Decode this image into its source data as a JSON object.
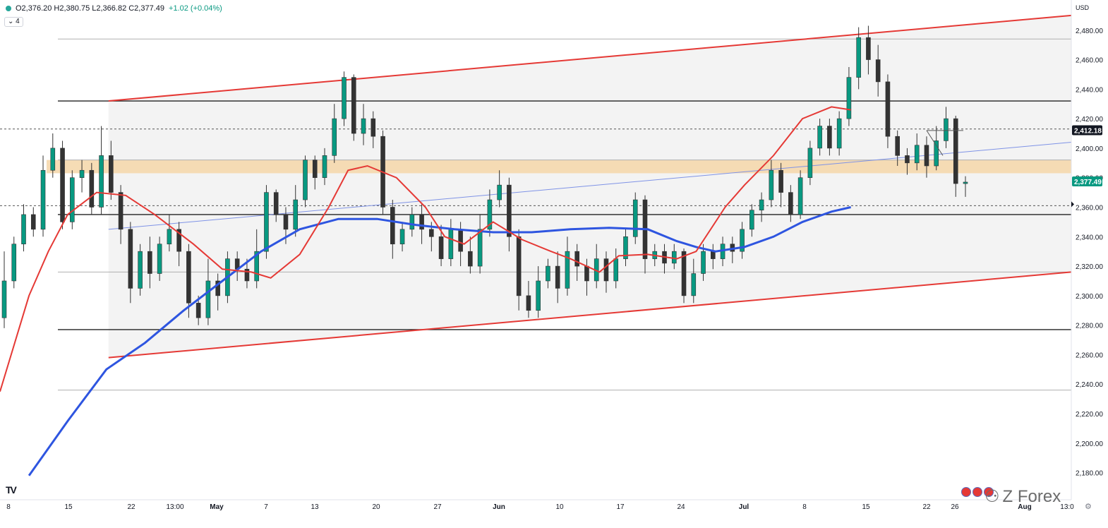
{
  "header": {
    "ohlc_text": "O2,376.20 H2,380.75 L2,366.82 C2,377.49",
    "change_text": "+1.02 (+0.04%)",
    "interval": "4",
    "currency": "USD"
  },
  "watermark": {
    "text": "Z Forex",
    "logo": "TV"
  },
  "icons": {
    "settings": "gear-icon",
    "flags": "us-flag-icon"
  },
  "colors": {
    "up": "#089981",
    "down": "#f23645",
    "candle": "#333333",
    "channel": "#e53935",
    "ma_red": "#e53935",
    "ma_blue": "#2e55e0",
    "zone": "#f5d6a8",
    "trend": "#7f93e6"
  },
  "chart_data": {
    "type": "candlestick",
    "ylim": [
      2170,
      2490
    ],
    "y_ticks": [
      "2,180.00",
      "2,200.00",
      "2,220.00",
      "2,240.00",
      "2,260.00",
      "2,280.00",
      "2,300.00",
      "2,320.00",
      "2,340.00",
      "2,360.00",
      "2,380.00",
      "2,400.00",
      "2,420.00",
      "2,440.00",
      "2,460.00",
      "2,480.00"
    ],
    "x_ticks": [
      "8",
      "15",
      "22",
      "13:00",
      "May",
      "7",
      "13",
      "20",
      "27",
      "Jun",
      "10",
      "17",
      "24",
      "Jul",
      "8",
      "15",
      "22",
      "26",
      "Aug",
      "13:0"
    ],
    "price_labels": [
      {
        "text": "2,412.18",
        "value": 2412.18,
        "style": "dark"
      },
      {
        "text": "2,377.49",
        "value": 2377.49,
        "style": "green"
      }
    ],
    "horizontal_levels": [
      2432,
      2355,
      2277
    ],
    "gray_levels": [
      2474,
      2392,
      2316,
      2236
    ],
    "dashed_levels": [
      2413,
      2361
    ],
    "zone": {
      "low": 2383,
      "high": 2392
    },
    "channel_upper": [
      [
        0.05,
        2432
      ],
      [
        1.0,
        2490
      ]
    ],
    "channel_lower": [
      [
        0.05,
        2258
      ],
      [
        1.0,
        2316
      ]
    ],
    "trendline": [
      [
        0.05,
        2345
      ],
      [
        1.0,
        2404
      ]
    ],
    "ma_red": [
      [
        0,
        2235
      ],
      [
        0.03,
        2300
      ],
      [
        0.05,
        2330
      ],
      [
        0.07,
        2355
      ],
      [
        0.1,
        2370
      ],
      [
        0.13,
        2368
      ],
      [
        0.16,
        2355
      ],
      [
        0.2,
        2335
      ],
      [
        0.23,
        2318
      ],
      [
        0.26,
        2316
      ],
      [
        0.28,
        2312
      ],
      [
        0.31,
        2328
      ],
      [
        0.34,
        2360
      ],
      [
        0.36,
        2385
      ],
      [
        0.38,
        2388
      ],
      [
        0.41,
        2380
      ],
      [
        0.44,
        2360
      ],
      [
        0.46,
        2340
      ],
      [
        0.48,
        2335
      ],
      [
        0.51,
        2350
      ],
      [
        0.54,
        2338
      ],
      [
        0.57,
        2330
      ],
      [
        0.59,
        2325
      ],
      [
        0.62,
        2316
      ],
      [
        0.64,
        2327
      ],
      [
        0.67,
        2328
      ],
      [
        0.7,
        2325
      ],
      [
        0.72,
        2330
      ],
      [
        0.75,
        2360
      ],
      [
        0.77,
        2375
      ],
      [
        0.8,
        2395
      ],
      [
        0.83,
        2420
      ],
      [
        0.86,
        2428
      ],
      [
        0.88,
        2426
      ]
    ],
    "ma_blue": [
      [
        0.03,
        2178
      ],
      [
        0.07,
        2215
      ],
      [
        0.11,
        2250
      ],
      [
        0.15,
        2268
      ],
      [
        0.19,
        2290
      ],
      [
        0.23,
        2310
      ],
      [
        0.27,
        2330
      ],
      [
        0.31,
        2345
      ],
      [
        0.35,
        2352
      ],
      [
        0.39,
        2352
      ],
      [
        0.43,
        2348
      ],
      [
        0.47,
        2345
      ],
      [
        0.51,
        2343
      ],
      [
        0.55,
        2343
      ],
      [
        0.59,
        2345
      ],
      [
        0.63,
        2346
      ],
      [
        0.67,
        2345
      ],
      [
        0.7,
        2337
      ],
      [
        0.72,
        2333
      ],
      [
        0.74,
        2330
      ],
      [
        0.77,
        2333
      ],
      [
        0.8,
        2340
      ],
      [
        0.83,
        2350
      ],
      [
        0.86,
        2357
      ],
      [
        0.88,
        2360
      ]
    ],
    "candles": [
      [
        2285,
        2310,
        2278,
        2330
      ],
      [
        2310,
        2335,
        2305,
        2340
      ],
      [
        2335,
        2355,
        2330,
        2362
      ],
      [
        2355,
        2345,
        2340,
        2360
      ],
      [
        2345,
        2385,
        2340,
        2395
      ],
      [
        2385,
        2400,
        2380,
        2410
      ],
      [
        2400,
        2350,
        2345,
        2405
      ],
      [
        2350,
        2380,
        2345,
        2385
      ],
      [
        2380,
        2385,
        2370,
        2392
      ],
      [
        2385,
        2360,
        2355,
        2390
      ],
      [
        2360,
        2395,
        2355,
        2415
      ],
      [
        2395,
        2370,
        2365,
        2405
      ],
      [
        2370,
        2345,
        2335,
        2375
      ],
      [
        2345,
        2305,
        2295,
        2350
      ],
      [
        2305,
        2330,
        2300,
        2335
      ],
      [
        2330,
        2315,
        2305,
        2340
      ],
      [
        2315,
        2335,
        2310,
        2340
      ],
      [
        2335,
        2345,
        2330,
        2355
      ],
      [
        2345,
        2330,
        2320,
        2350
      ],
      [
        2330,
        2295,
        2285,
        2335
      ],
      [
        2295,
        2285,
        2280,
        2300
      ],
      [
        2285,
        2310,
        2280,
        2325
      ],
      [
        2310,
        2300,
        2290,
        2315
      ],
      [
        2300,
        2325,
        2295,
        2330
      ],
      [
        2325,
        2318,
        2310,
        2330
      ],
      [
        2318,
        2310,
        2305,
        2325
      ],
      [
        2310,
        2330,
        2305,
        2345
      ],
      [
        2330,
        2370,
        2325,
        2375
      ],
      [
        2370,
        2355,
        2350,
        2372
      ],
      [
        2355,
        2345,
        2335,
        2360
      ],
      [
        2345,
        2365,
        2340,
        2375
      ],
      [
        2365,
        2392,
        2360,
        2395
      ],
      [
        2392,
        2380,
        2372,
        2395
      ],
      [
        2380,
        2395,
        2375,
        2400
      ],
      [
        2395,
        2420,
        2390,
        2430
      ],
      [
        2420,
        2448,
        2415,
        2452
      ],
      [
        2448,
        2410,
        2405,
        2450
      ],
      [
        2410,
        2420,
        2402,
        2430
      ],
      [
        2420,
        2408,
        2400,
        2425
      ],
      [
        2408,
        2360,
        2355,
        2412
      ],
      [
        2360,
        2335,
        2325,
        2365
      ],
      [
        2335,
        2345,
        2330,
        2350
      ],
      [
        2345,
        2355,
        2340,
        2360
      ],
      [
        2355,
        2345,
        2335,
        2362
      ],
      [
        2345,
        2340,
        2330,
        2350
      ],
      [
        2340,
        2325,
        2320,
        2348
      ],
      [
        2325,
        2345,
        2320,
        2352
      ],
      [
        2345,
        2330,
        2320,
        2350
      ],
      [
        2330,
        2320,
        2315,
        2340
      ],
      [
        2320,
        2345,
        2315,
        2355
      ],
      [
        2345,
        2365,
        2340,
        2372
      ],
      [
        2365,
        2375,
        2360,
        2385
      ],
      [
        2375,
        2340,
        2330,
        2380
      ],
      [
        2340,
        2300,
        2290,
        2345
      ],
      [
        2300,
        2290,
        2285,
        2310
      ],
      [
        2290,
        2310,
        2285,
        2320
      ],
      [
        2310,
        2320,
        2305,
        2325
      ],
      [
        2320,
        2305,
        2295,
        2330
      ],
      [
        2305,
        2330,
        2300,
        2340
      ],
      [
        2330,
        2320,
        2310,
        2335
      ],
      [
        2320,
        2310,
        2300,
        2325
      ],
      [
        2310,
        2325,
        2305,
        2335
      ],
      [
        2325,
        2310,
        2302,
        2330
      ],
      [
        2310,
        2325,
        2305,
        2332
      ],
      [
        2325,
        2340,
        2320,
        2345
      ],
      [
        2340,
        2365,
        2335,
        2370
      ],
      [
        2365,
        2325,
        2315,
        2368
      ],
      [
        2325,
        2330,
        2320,
        2335
      ],
      [
        2330,
        2322,
        2315,
        2335
      ],
      [
        2322,
        2330,
        2318,
        2335
      ],
      [
        2330,
        2300,
        2295,
        2332
      ],
      [
        2300,
        2315,
        2295,
        2325
      ],
      [
        2315,
        2330,
        2310,
        2335
      ],
      [
        2330,
        2325,
        2318,
        2335
      ],
      [
        2325,
        2335,
        2320,
        2340
      ],
      [
        2335,
        2330,
        2322,
        2340
      ],
      [
        2330,
        2345,
        2325,
        2350
      ],
      [
        2345,
        2358,
        2340,
        2362
      ],
      [
        2358,
        2365,
        2350,
        2370
      ],
      [
        2365,
        2385,
        2360,
        2392
      ],
      [
        2385,
        2370,
        2360,
        2390
      ],
      [
        2370,
        2355,
        2350,
        2375
      ],
      [
        2355,
        2380,
        2352,
        2385
      ],
      [
        2380,
        2400,
        2375,
        2405
      ],
      [
        2400,
        2415,
        2395,
        2420
      ],
      [
        2415,
        2400,
        2395,
        2420
      ],
      [
        2400,
        2420,
        2395,
        2425
      ],
      [
        2420,
        2448,
        2415,
        2455
      ],
      [
        2448,
        2475,
        2440,
        2482
      ],
      [
        2475,
        2460,
        2450,
        2483
      ],
      [
        2460,
        2445,
        2435,
        2470
      ],
      [
        2445,
        2408,
        2400,
        2450
      ],
      [
        2408,
        2395,
        2388,
        2412
      ],
      [
        2395,
        2390,
        2382,
        2400
      ],
      [
        2390,
        2402,
        2385,
        2410
      ],
      [
        2402,
        2388,
        2380,
        2408
      ],
      [
        2388,
        2405,
        2385,
        2415
      ],
      [
        2405,
        2420,
        2400,
        2428
      ],
      [
        2420,
        2376,
        2367,
        2422
      ],
      [
        2376,
        2377,
        2367,
        2381
      ]
    ]
  }
}
